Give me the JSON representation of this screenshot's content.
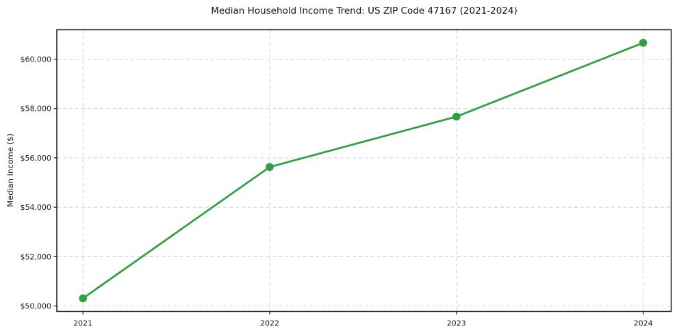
{
  "chart_data": {
    "type": "line",
    "title": "Median Household Income Trend: US ZIP Code 47167 (2021-2024)",
    "xlabel": "",
    "ylabel": "Median Income ($)",
    "x": [
      2021,
      2022,
      2023,
      2024
    ],
    "x_tick_labels": [
      "2021",
      "2022",
      "2023",
      "2024"
    ],
    "y_ticks": [
      50000,
      52000,
      54000,
      56000,
      58000,
      60000
    ],
    "y_tick_labels": [
      "$50,000",
      "$52,000",
      "$54,000",
      "$56,000",
      "$58,000",
      "$60,000"
    ],
    "series": [
      {
        "name": "Median Household Income",
        "values": [
          50310,
          55630,
          57670,
          60660
        ],
        "color": "#2fa043",
        "marker": "circle"
      }
    ],
    "xlim": [
      2020.86,
      2024.15
    ],
    "ylim": [
      49780,
      61190
    ],
    "grid": true,
    "grid_style": "dashed",
    "grid_color": "#cdcdcd",
    "axis_color": "#1a1a1a",
    "text_color": "#1a1a1a",
    "legend_position": "none"
  }
}
